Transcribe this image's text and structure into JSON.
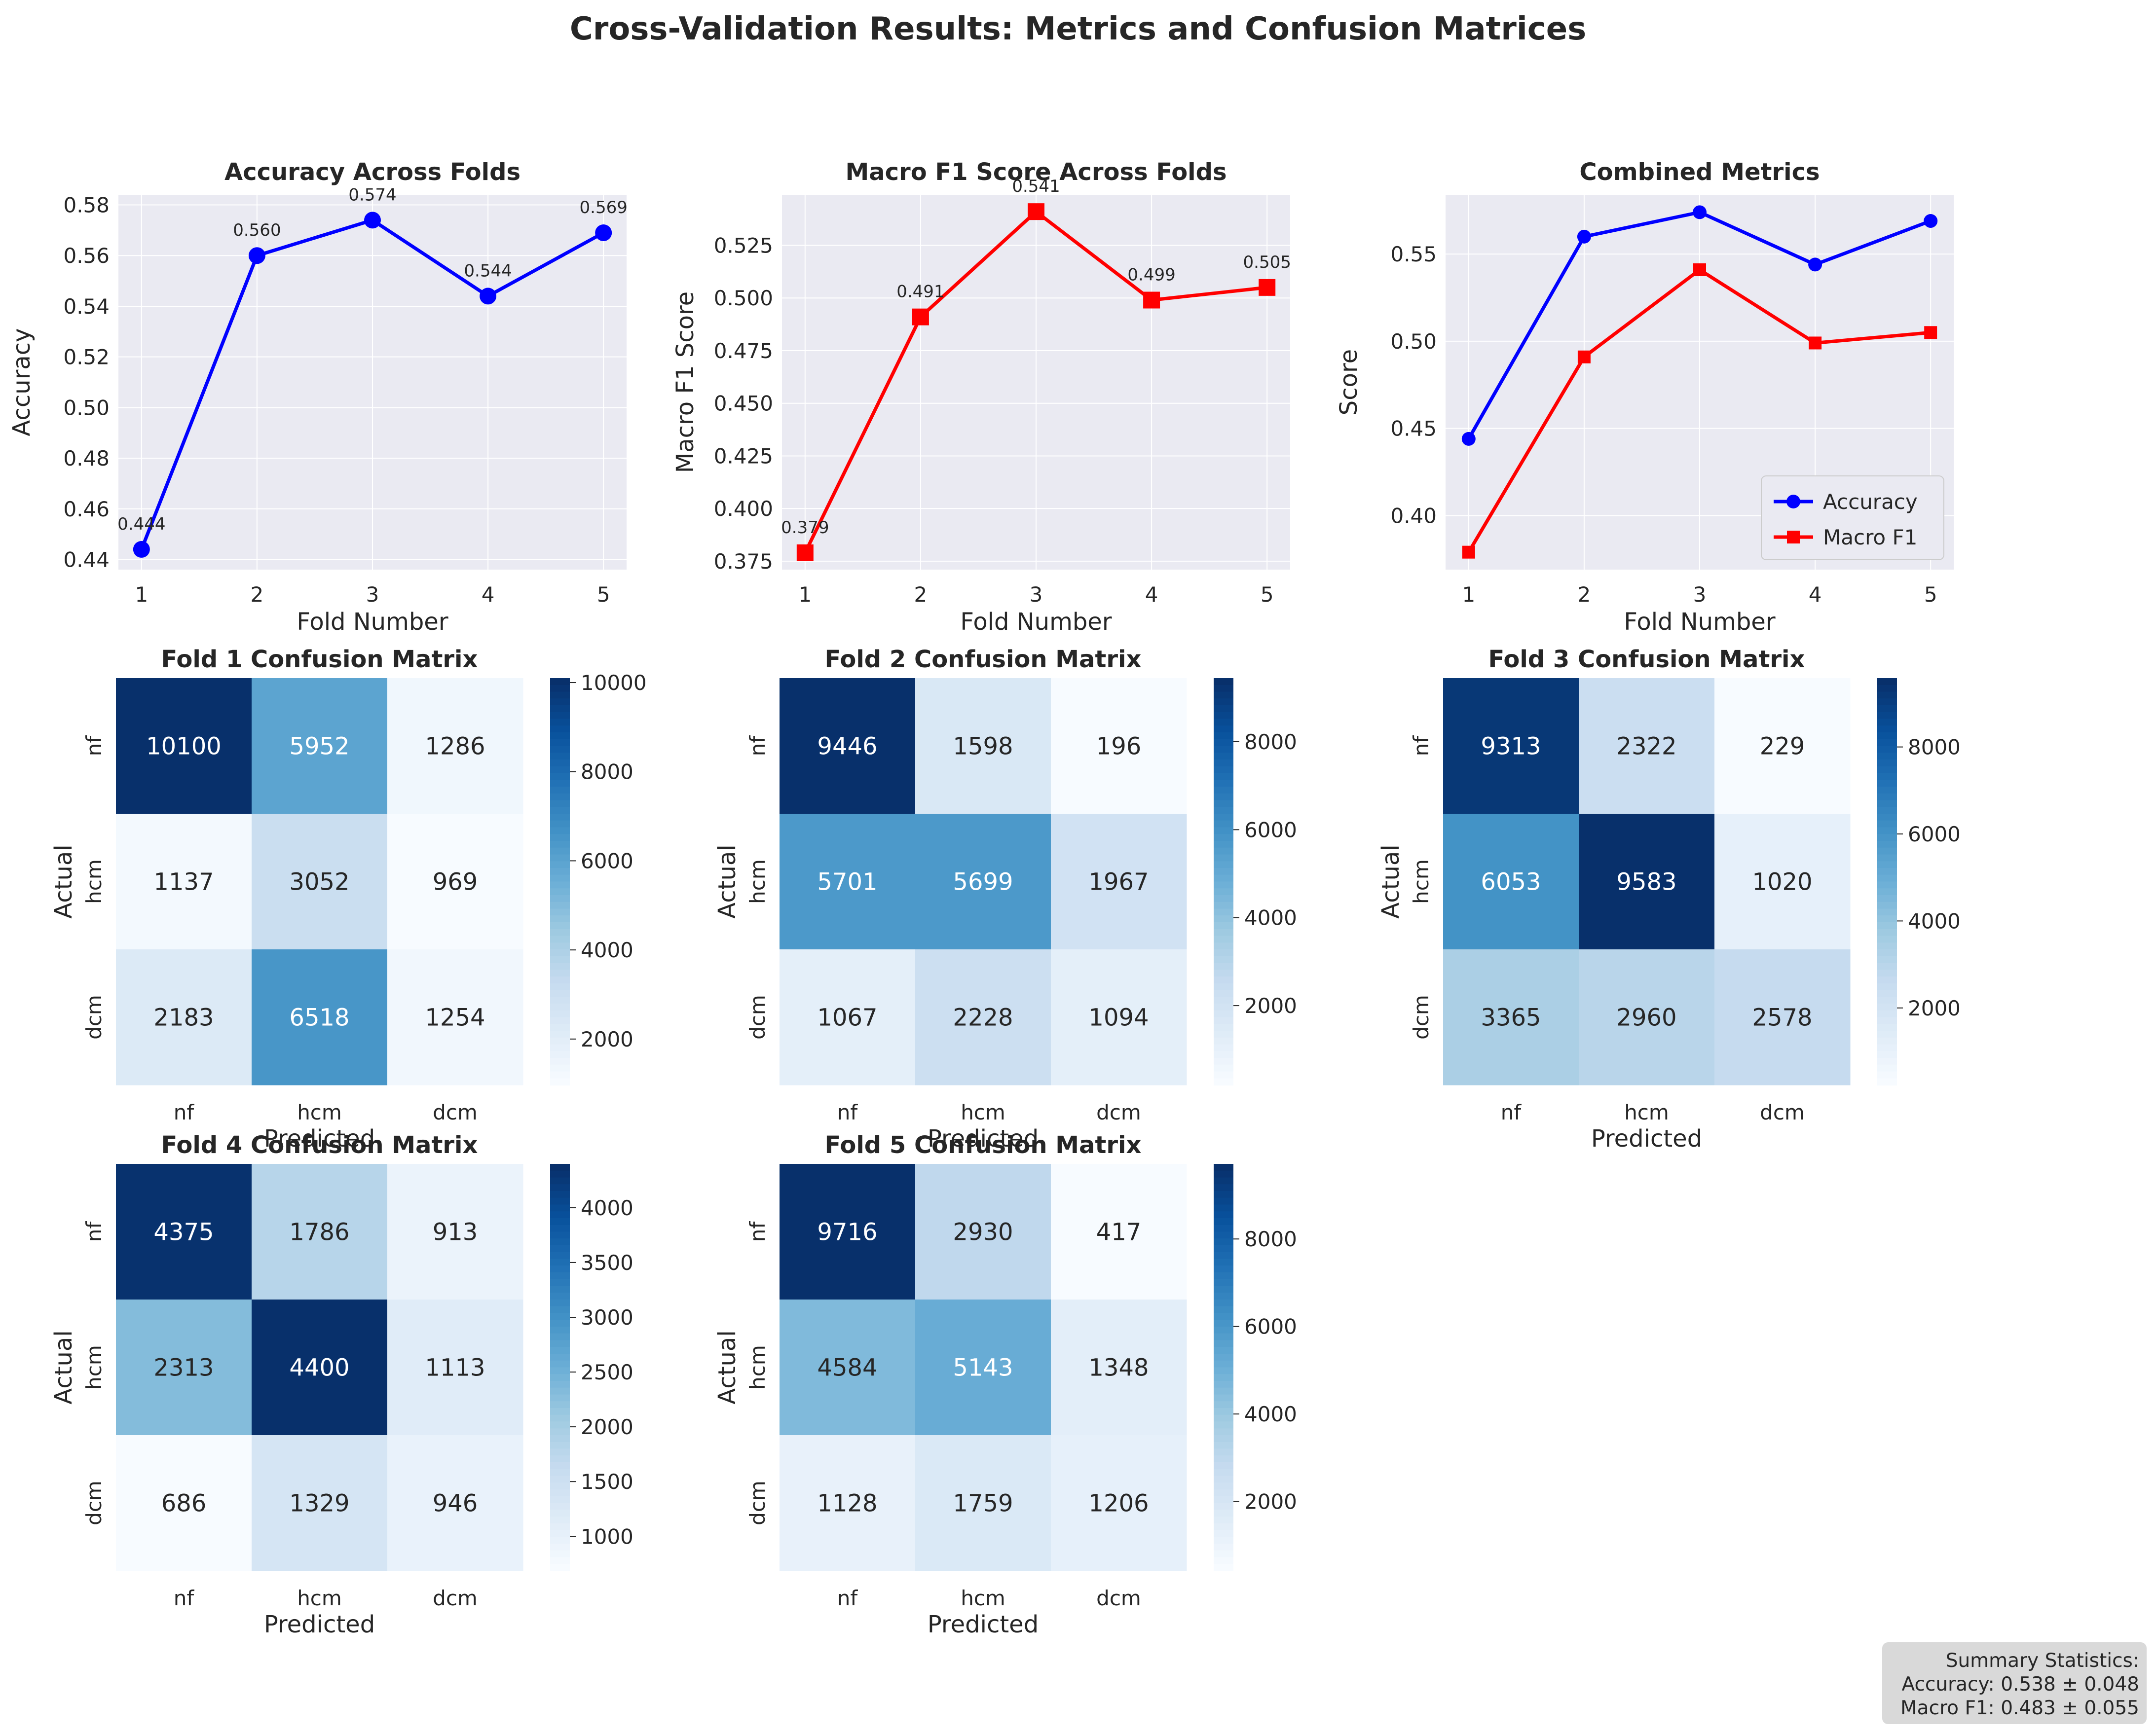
{
  "figure": {
    "title": "Cross-Validation Results: Metrics and Confusion Matrices"
  },
  "chart_data": [
    {
      "type": "line",
      "title": "Accuracy Across Folds",
      "xlabel": "Fold Number",
      "ylabel": "Accuracy",
      "x": [
        1,
        2,
        3,
        4,
        5
      ],
      "ylim": [
        0.436,
        0.584
      ],
      "yticks": [
        "0.44",
        "0.46",
        "0.48",
        "0.50",
        "0.52",
        "0.54",
        "0.56",
        "0.58"
      ],
      "series": [
        {
          "values": [
            0.444,
            0.56,
            0.574,
            0.544,
            0.569
          ],
          "labels": [
            "0.444",
            "0.560",
            "0.574",
            "0.544",
            "0.569"
          ],
          "color": "#0000ff",
          "marker": "circle"
        }
      ],
      "grid": true
    },
    {
      "type": "line",
      "title": "Macro F1 Score Across Folds",
      "xlabel": "Fold Number",
      "ylabel": "Macro F1 Score",
      "x": [
        1,
        2,
        3,
        4,
        5
      ],
      "ylim": [
        0.371,
        0.549
      ],
      "yticks": [
        "0.375",
        "0.400",
        "0.425",
        "0.450",
        "0.475",
        "0.500",
        "0.525"
      ],
      "series": [
        {
          "values": [
            0.379,
            0.491,
            0.541,
            0.499,
            0.505
          ],
          "labels": [
            "0.379",
            "0.491",
            "0.541",
            "0.499",
            "0.505"
          ],
          "color": "#ff0000",
          "marker": "square"
        }
      ],
      "grid": true
    },
    {
      "type": "line",
      "title": "Combined Metrics",
      "xlabel": "",
      "ylabel": "Score",
      "x": [
        1,
        2,
        3,
        4,
        5
      ],
      "ylim": [
        0.369,
        0.584
      ],
      "yticks": [
        "0.40",
        "0.45",
        "0.50",
        "0.55"
      ],
      "series": [
        {
          "name": "Accuracy",
          "values": [
            0.444,
            0.56,
            0.574,
            0.544,
            0.569
          ],
          "color": "#0000ff",
          "marker": "circle"
        },
        {
          "name": "Macro F1",
          "values": [
            0.379,
            0.491,
            0.541,
            0.499,
            0.505
          ],
          "color": "#ff0000",
          "marker": "square"
        }
      ],
      "legend": "lower-right",
      "grid": true
    },
    {
      "type": "heatmap",
      "title": "Fold 1 Confusion Matrix",
      "xlabel": "Predicted",
      "ylabel": "Actual",
      "classes": [
        "nf",
        "hcm",
        "dcm"
      ],
      "matrix": [
        [
          10100,
          5952,
          1286
        ],
        [
          1137,
          3052,
          969
        ],
        [
          2183,
          6518,
          1254
        ]
      ],
      "colorbar_ticks": [
        2000,
        4000,
        6000,
        8000,
        10000
      ],
      "colormap": "Blues"
    },
    {
      "type": "heatmap",
      "title": "Fold 2 Confusion Matrix",
      "xlabel": "Predicted",
      "ylabel": "Actual",
      "classes": [
        "nf",
        "hcm",
        "dcm"
      ],
      "matrix": [
        [
          9446,
          1598,
          196
        ],
        [
          5701,
          5699,
          1967
        ],
        [
          1067,
          2228,
          1094
        ]
      ],
      "colorbar_ticks": [
        2000,
        4000,
        6000,
        8000
      ],
      "colormap": "Blues"
    },
    {
      "type": "heatmap",
      "title": "Fold 3 Confusion Matrix",
      "xlabel": "Predicted",
      "ylabel": "Actual",
      "classes": [
        "nf",
        "hcm",
        "dcm"
      ],
      "matrix": [
        [
          9313,
          2322,
          229
        ],
        [
          6053,
          9583,
          1020
        ],
        [
          3365,
          2960,
          2578
        ]
      ],
      "colorbar_ticks": [
        2000,
        4000,
        6000,
        8000
      ],
      "colormap": "Blues"
    },
    {
      "type": "heatmap",
      "title": "Fold 4 Confusion Matrix",
      "xlabel": "Predicted",
      "ylabel": "Actual",
      "classes": [
        "nf",
        "hcm",
        "dcm"
      ],
      "matrix": [
        [
          4375,
          1786,
          913
        ],
        [
          2313,
          4400,
          1113
        ],
        [
          686,
          1329,
          946
        ]
      ],
      "colorbar_ticks": [
        1000,
        1500,
        2000,
        2500,
        3000,
        3500,
        4000
      ],
      "colormap": "Blues"
    },
    {
      "type": "heatmap",
      "title": "Fold 5 Confusion Matrix",
      "xlabel": "Predicted",
      "ylabel": "Actual",
      "classes": [
        "nf",
        "hcm",
        "dcm"
      ],
      "matrix": [
        [
          9716,
          2930,
          417
        ],
        [
          4584,
          5143,
          1348
        ],
        [
          1128,
          1759,
          1206
        ]
      ],
      "colorbar_ticks": [
        2000,
        4000,
        6000,
        8000
      ],
      "colormap": "Blues"
    }
  ],
  "summary": {
    "lines": [
      "Summary Statistics:",
      "Accuracy: 0.538 ± 0.048",
      "Macro F1: 0.483 ± 0.055"
    ]
  }
}
